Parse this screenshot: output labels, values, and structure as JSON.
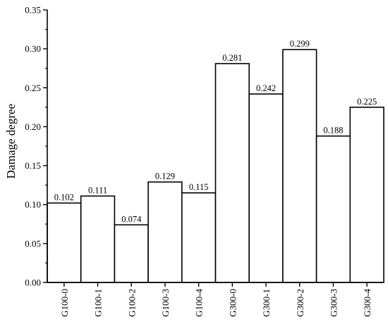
{
  "chart_data": {
    "type": "bar",
    "title": "",
    "xlabel": "",
    "ylabel": "Damage degree",
    "ylim": [
      0,
      0.35
    ],
    "yticks": [
      "0.00",
      "0.05",
      "0.10",
      "0.15",
      "0.20",
      "0.25",
      "0.30",
      "0.35"
    ],
    "grid": false,
    "legend": "none",
    "bar_fill": "#ffffff",
    "bar_stroke": "#000000",
    "categories": [
      "G100-0",
      "G100-1",
      "G100-2",
      "G100-3",
      "G100-4",
      "G300-0",
      "G300-1",
      "G300-2",
      "G300-3",
      "G300-4"
    ],
    "values": [
      0.102,
      0.111,
      0.074,
      0.129,
      0.115,
      0.281,
      0.242,
      0.299,
      0.188,
      0.225
    ],
    "data_labels": [
      "0.102",
      "0.111",
      "0.074",
      "0.129",
      "0.115",
      "0.281",
      "0.242",
      "0.299",
      "0.188",
      "0.225"
    ]
  }
}
